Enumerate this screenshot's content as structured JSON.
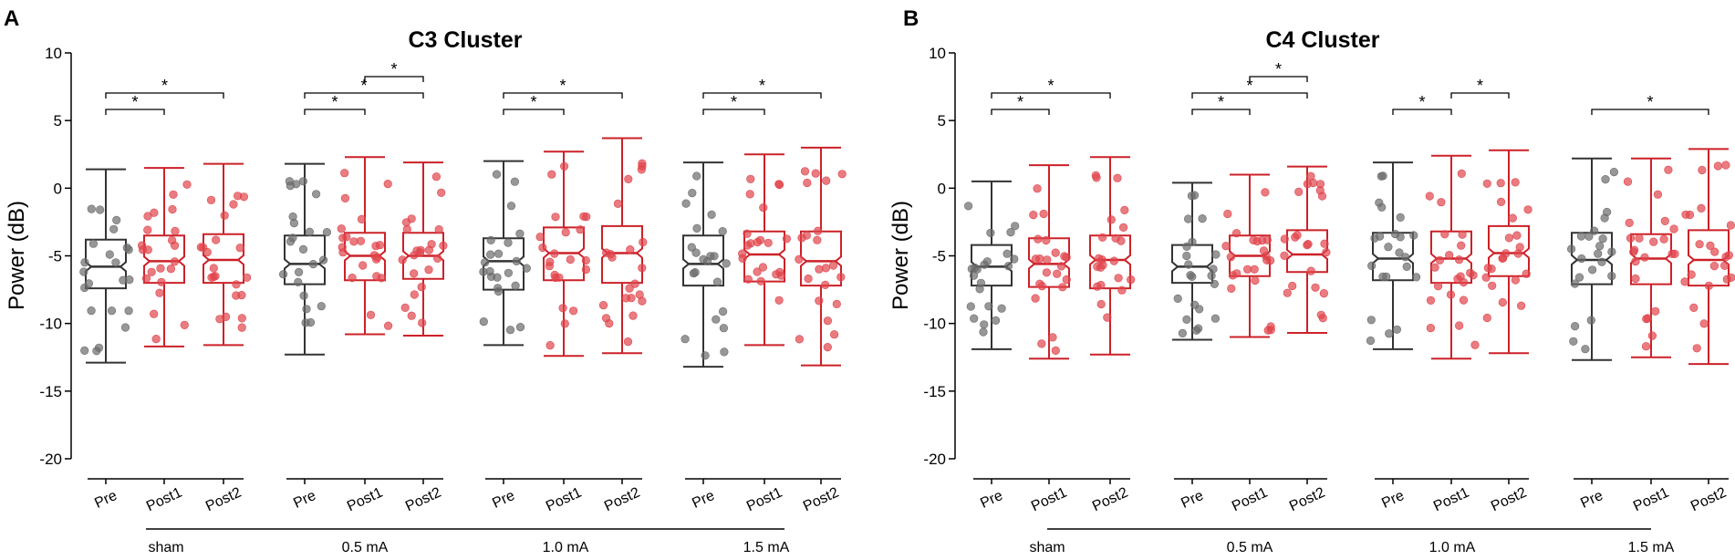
{
  "colors": {
    "pre": "#333333",
    "post": "#cc2128",
    "axis": "#000000",
    "pre_dot": "#6b6b6b",
    "post_dot": "#e0454c"
  },
  "y_axis": {
    "label": "Power (dB)",
    "ticks": [
      "10",
      "5",
      "0",
      "-5",
      "-10",
      "-15",
      "-20"
    ]
  },
  "conditions": [
    "Pre",
    "Post1",
    "Post2"
  ],
  "groups": [
    "sham",
    "0.5 mA",
    "1.0 mA",
    "1.5 mA"
  ],
  "significance_label": "*",
  "chart_data": [
    {
      "type": "box",
      "panel": "A",
      "title": "C3 Cluster",
      "ylabel": "Power (dB)",
      "ylim": [
        -20,
        10
      ],
      "groups": [
        {
          "name": "sham",
          "boxes": [
            {
              "condition": "Pre",
              "min": -12.9,
              "q1": -7.4,
              "median": -5.8,
              "q3": -3.8,
              "max": 1.4
            },
            {
              "condition": "Post1",
              "min": -11.7,
              "q1": -7.0,
              "median": -5.4,
              "q3": -3.5,
              "max": 1.5
            },
            {
              "condition": "Post2",
              "min": -11.6,
              "q1": -7.0,
              "median": -5.3,
              "q3": -3.4,
              "max": 1.8
            }
          ],
          "significance": [
            {
              "from": "Pre",
              "to": "Post1",
              "level": 1
            },
            {
              "from": "Pre",
              "to": "Post2",
              "level": 2
            }
          ]
        },
        {
          "name": "0.5 mA",
          "boxes": [
            {
              "condition": "Pre",
              "min": -12.3,
              "q1": -7.1,
              "median": -5.6,
              "q3": -3.5,
              "max": 1.8
            },
            {
              "condition": "Post1",
              "min": -10.8,
              "q1": -6.8,
              "median": -5.0,
              "q3": -3.3,
              "max": 2.3
            },
            {
              "condition": "Post2",
              "min": -10.9,
              "q1": -6.7,
              "median": -5.0,
              "q3": -3.3,
              "max": 1.9
            }
          ],
          "significance": [
            {
              "from": "Pre",
              "to": "Post1",
              "level": 1
            },
            {
              "from": "Pre",
              "to": "Post2",
              "level": 2
            },
            {
              "from": "Post1",
              "to": "Post2",
              "level": 3
            }
          ]
        },
        {
          "name": "1.0 mA",
          "boxes": [
            {
              "condition": "Pre",
              "min": -11.6,
              "q1": -7.5,
              "median": -5.4,
              "q3": -3.7,
              "max": 2.0
            },
            {
              "condition": "Post1",
              "min": -12.4,
              "q1": -6.8,
              "median": -4.8,
              "q3": -2.9,
              "max": 2.7
            },
            {
              "condition": "Post2",
              "min": -12.2,
              "q1": -7.0,
              "median": -4.8,
              "q3": -2.8,
              "max": 3.7
            }
          ],
          "significance": [
            {
              "from": "Pre",
              "to": "Post1",
              "level": 1
            },
            {
              "from": "Pre",
              "to": "Post2",
              "level": 2
            }
          ]
        },
        {
          "name": "1.5 mA",
          "boxes": [
            {
              "condition": "Pre",
              "min": -13.2,
              "q1": -7.2,
              "median": -5.6,
              "q3": -3.5,
              "max": 1.9
            },
            {
              "condition": "Post1",
              "min": -11.6,
              "q1": -6.9,
              "median": -4.9,
              "q3": -3.2,
              "max": 2.5
            },
            {
              "condition": "Post2",
              "min": -13.1,
              "q1": -7.2,
              "median": -5.4,
              "q3": -3.2,
              "max": 3.0
            }
          ],
          "significance": [
            {
              "from": "Pre",
              "to": "Post1",
              "level": 1
            },
            {
              "from": "Pre",
              "to": "Post2",
              "level": 2
            }
          ]
        }
      ]
    },
    {
      "type": "box",
      "panel": "B",
      "title": "C4 Cluster",
      "ylabel": "Power (dB)",
      "ylim": [
        -20,
        10
      ],
      "groups": [
        {
          "name": "sham",
          "boxes": [
            {
              "condition": "Pre",
              "min": -11.9,
              "q1": -7.2,
              "median": -5.8,
              "q3": -4.2,
              "max": 0.5
            },
            {
              "condition": "Post1",
              "min": -12.6,
              "q1": -7.3,
              "median": -5.6,
              "q3": -3.7,
              "max": 1.7
            },
            {
              "condition": "Post2",
              "min": -12.3,
              "q1": -7.4,
              "median": -5.3,
              "q3": -3.5,
              "max": 2.3
            }
          ],
          "significance": [
            {
              "from": "Pre",
              "to": "Post1",
              "level": 1
            },
            {
              "from": "Pre",
              "to": "Post2",
              "level": 2
            }
          ]
        },
        {
          "name": "0.5 mA",
          "boxes": [
            {
              "condition": "Pre",
              "min": -11.2,
              "q1": -7.0,
              "median": -5.8,
              "q3": -4.2,
              "max": 0.4
            },
            {
              "condition": "Post1",
              "min": -11.0,
              "q1": -6.5,
              "median": -5.0,
              "q3": -3.5,
              "max": 1.0
            },
            {
              "condition": "Post2",
              "min": -10.7,
              "q1": -6.2,
              "median": -4.9,
              "q3": -3.1,
              "max": 1.6
            }
          ],
          "significance": [
            {
              "from": "Pre",
              "to": "Post1",
              "level": 1
            },
            {
              "from": "Pre",
              "to": "Post2",
              "level": 2
            },
            {
              "from": "Post1",
              "to": "Post2",
              "level": 3
            }
          ]
        },
        {
          "name": "1.0 mA",
          "boxes": [
            {
              "condition": "Pre",
              "min": -11.9,
              "q1": -6.8,
              "median": -5.2,
              "q3": -3.3,
              "max": 1.9
            },
            {
              "condition": "Post1",
              "min": -12.6,
              "q1": -7.0,
              "median": -5.2,
              "q3": -3.2,
              "max": 2.4
            },
            {
              "condition": "Post2",
              "min": -12.2,
              "q1": -6.5,
              "median": -4.8,
              "q3": -2.8,
              "max": 2.8
            }
          ],
          "significance": [
            {
              "from": "Pre",
              "to": "Post1",
              "level": 1
            },
            {
              "from": "Post1",
              "to": "Post2",
              "level": 2
            }
          ]
        },
        {
          "name": "1.5 mA",
          "boxes": [
            {
              "condition": "Pre",
              "min": -12.7,
              "q1": -7.1,
              "median": -5.3,
              "q3": -3.3,
              "max": 2.2
            },
            {
              "condition": "Post1",
              "min": -12.5,
              "q1": -7.1,
              "median": -5.2,
              "q3": -3.4,
              "max": 2.2
            },
            {
              "condition": "Post2",
              "min": -13.0,
              "q1": -7.2,
              "median": -5.3,
              "q3": -3.1,
              "max": 2.9
            }
          ],
          "significance": [
            {
              "from": "Pre",
              "to": "Post2",
              "level": 1
            }
          ]
        }
      ]
    }
  ]
}
